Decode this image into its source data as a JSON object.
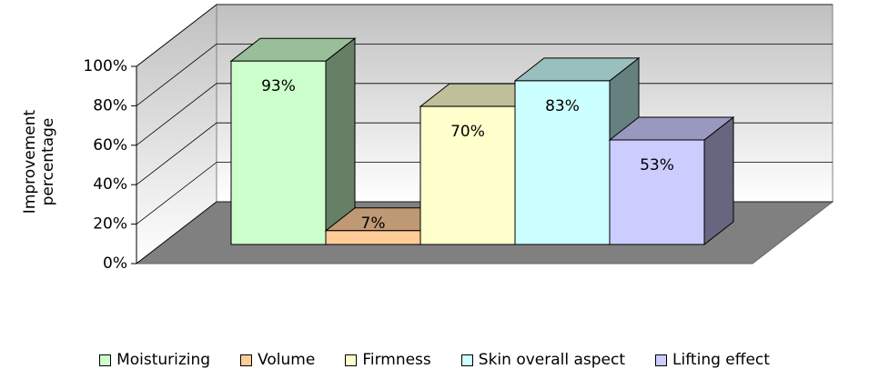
{
  "chart_data": {
    "type": "bar3d",
    "y_label": "Improvement percentage",
    "series": [
      {
        "name": "Moisturizing",
        "color": "#ccffcc",
        "values": [
          93
        ],
        "value_labels": [
          "93%"
        ]
      },
      {
        "name": "Volume",
        "color": "#ffcc99",
        "values": [
          7
        ],
        "value_labels": [
          "7%"
        ]
      },
      {
        "name": "Firmness",
        "color": "#ffffcc",
        "values": [
          70
        ],
        "value_labels": [
          "70%"
        ]
      },
      {
        "name": "Skin overall aspect",
        "color": "#ccffff",
        "values": [
          83
        ],
        "value_labels": [
          "83%"
        ]
      },
      {
        "name": "Lifting effect",
        "color": "#ccccff",
        "values": [
          53
        ],
        "value_labels": [
          "53%"
        ]
      }
    ],
    "ylim": [
      0,
      100
    ],
    "yticks": [
      {
        "value": 0,
        "label": "0%"
      },
      {
        "value": 20,
        "label": "20%"
      },
      {
        "value": 40,
        "label": "40%"
      },
      {
        "value": 60,
        "label": "60%"
      },
      {
        "value": 80,
        "label": "80%"
      },
      {
        "value": 100,
        "label": "100%"
      }
    ],
    "grid": true,
    "legend": "bottom"
  }
}
